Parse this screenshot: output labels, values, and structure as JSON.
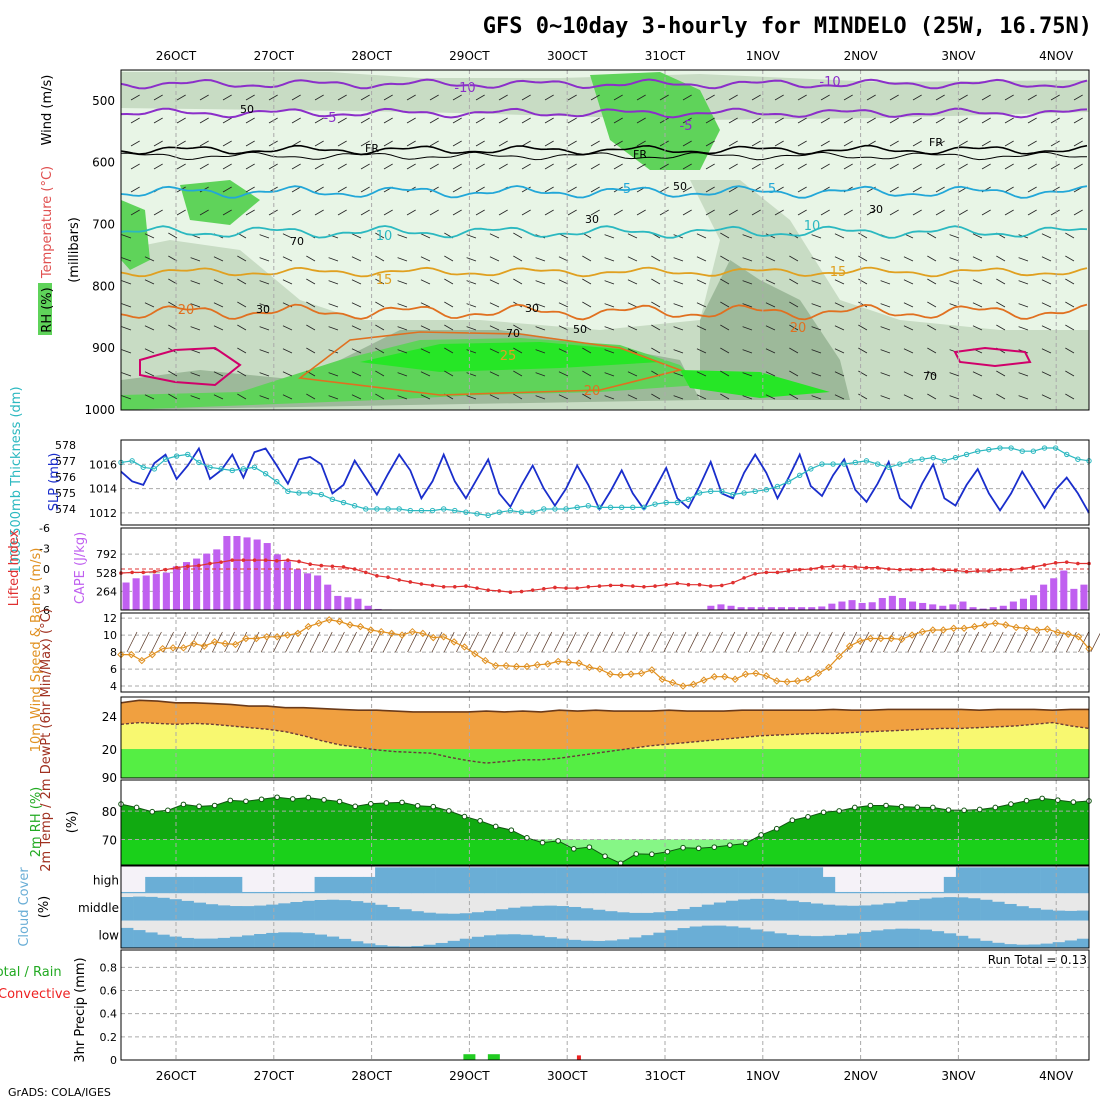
{
  "header": {
    "title": "GFS 0~10day 3-hourly for MINDELO (25W, 16.75N)",
    "footer": "GrADS: COLA/IGES"
  },
  "colors": {
    "rh_light": "#e8f5e6",
    "rh_mid": "#c8dcc4",
    "rh_dark": "#9db99a",
    "rh_green": "#5fd35a",
    "rh_bright": "#26e626",
    "wind_line": "#8b2fc9",
    "freeze_line": "#000000",
    "temp_cyan": "#22a7d8",
    "temp_orange": "#e0a020",
    "temp_dark_orange": "#e07020",
    "magenta": "#d0006a",
    "slp": "#1a2ecc",
    "thickness": "#2bb8c0",
    "cape": "#c060f0",
    "li": "#e03030",
    "wind10": "#e09020",
    "temp_fill": "#f0a040",
    "dew_fill": "#f8f870",
    "green_fill": "#55ee44",
    "rh2m_dark": "#11aa11",
    "rh2m_bright": "#22ee22",
    "cloud_blue": "#6aaed6",
    "cloud_gray": "#e8e8e8",
    "cloud_white": "#f5f2f8",
    "precip_total": "#22cc22",
    "precip_conv": "#ee2222"
  },
  "chart_data": [
    {
      "panel": "upper_air",
      "type": "heatmap",
      "x_dates": [
        "26OCT",
        "27OCT",
        "28OCT",
        "29OCT",
        "30OCT",
        "31OCT",
        "1NOV",
        "2NOV",
        "3NOV",
        "4NOV"
      ],
      "ylabel_parts": [
        "RH (%)",
        "Temperature (°C)",
        "Wind (m/s)"
      ],
      "ylabel_unit": "(millibars)",
      "y_ticks": [
        500,
        600,
        700,
        800,
        900,
        1000
      ],
      "ylim": [
        1000,
        450
      ],
      "contour_labels": {
        "wind": [
          "-10",
          "-5",
          "-10",
          "-5"
        ],
        "freezing": [
          "FR",
          "FR",
          "FR"
        ],
        "temp": [
          "5",
          "5",
          "10",
          "10",
          "15",
          "15",
          "20",
          "20",
          "20",
          "25"
        ],
        "rh": [
          "50",
          "70",
          "30",
          "30",
          "30",
          "70",
          "50",
          "50",
          "30",
          "70"
        ]
      }
    },
    {
      "panel": "thickness_slp",
      "type": "line",
      "ylabel_left": "1000-500mb Thickness (dm)",
      "ylabel_right": "SLP (mb)",
      "left_ticks": [
        "578",
        "577",
        "576",
        "575",
        "574"
      ],
      "right_ticks": [
        "1016",
        "1014",
        "1012"
      ],
      "series": [
        {
          "name": "SLP",
          "axis": "right",
          "values": [
            1015.4,
            1014.6,
            1014.3,
            1016.1,
            1016.8,
            1014.8,
            1015.9,
            1017.3,
            1014.8,
            1015.5,
            1016.8,
            1014.9,
            1017.0,
            1017.3,
            1015.9,
            1014.4,
            1016.4,
            1016.6,
            1016.0,
            1013.6,
            1014.3,
            1016.3,
            1014.9,
            1013.5,
            1015.2,
            1016.8,
            1015.5,
            1013.2,
            1014.6,
            1016.8,
            1014.6,
            1013.2,
            1014.8,
            1016.4,
            1013.6,
            1012.5,
            1014.3,
            1015.9,
            1014.0,
            1012.6,
            1014.0,
            1015.9,
            1014.3,
            1012.3,
            1013.8,
            1015.5,
            1013.6,
            1012.3,
            1014.0,
            1015.7,
            1013.2,
            1012.4,
            1014.2,
            1016.2,
            1013.6,
            1013.2,
            1015.3,
            1016.8,
            1015.3,
            1013.2,
            1014.9,
            1016.8,
            1014.2,
            1013.4,
            1015.1,
            1016.4,
            1013.9,
            1012.9,
            1014.4,
            1016.2,
            1013.2,
            1012.4,
            1014.4,
            1016.0,
            1013.2,
            1012.6,
            1014.3,
            1015.6,
            1013.6,
            1012.2,
            1013.6,
            1015.4,
            1013.9,
            1012.4,
            1013.9,
            1014.9,
            1013.6,
            1012.0
          ]
        },
        {
          "name": "Thickness",
          "axis": "left",
          "values": [
            576.9,
            577.0,
            576.6,
            576.5,
            577.1,
            577.3,
            577.4,
            576.9,
            576.6,
            576.5,
            576.4,
            576.5,
            576.6,
            576.2,
            575.7,
            575.1,
            575.0,
            575.0,
            574.9,
            574.6,
            574.4,
            574.2,
            574.0,
            574.0,
            574.0,
            574.0,
            573.9,
            573.9,
            573.9,
            574.0,
            573.9,
            573.8,
            573.7,
            573.6,
            573.8,
            573.9,
            573.8,
            573.8,
            574.0,
            574.0,
            574.0,
            574.1,
            574.2,
            574.1,
            574.1,
            574.1,
            574.1,
            574.1,
            574.3,
            574.4,
            574.4,
            574.6,
            575.0,
            575.1,
            575.1,
            574.9,
            575.0,
            575.1,
            575.2,
            575.4,
            575.7,
            576.1,
            576.5,
            576.8,
            576.8,
            576.8,
            576.9,
            577.0,
            576.8,
            576.6,
            576.8,
            577.0,
            577.1,
            577.2,
            577.0,
            577.2,
            577.4,
            577.6,
            577.7,
            577.8,
            577.8,
            577.6,
            577.6,
            577.8,
            577.8,
            577.4,
            577.1,
            577.0
          ]
        }
      ]
    },
    {
      "panel": "cape_li",
      "type": "bar",
      "ylabel_left": "Lifted Index",
      "ylabel_right": "CAPE (J/kg)",
      "left_ticks": [
        "-6",
        "-3",
        "0",
        "3",
        "6"
      ],
      "right_ticks": [
        "792",
        "528",
        "264"
      ],
      "series": [
        {
          "name": "CAPE",
          "axis": "right",
          "values": [
            390,
            450,
            490,
            510,
            530,
            620,
            680,
            730,
            800,
            860,
            1050,
            1050,
            1030,
            1000,
            950,
            790,
            690,
            580,
            520,
            490,
            360,
            200,
            180,
            160,
            60,
            15,
            8,
            5,
            5,
            5,
            5,
            5,
            5,
            5,
            5,
            5,
            5,
            5,
            5,
            5,
            5,
            5,
            5,
            5,
            5,
            5,
            5,
            5,
            5,
            5,
            5,
            5,
            5,
            5,
            5,
            5,
            5,
            5,
            60,
            80,
            60,
            40,
            40,
            40,
            40,
            40,
            40,
            40,
            40,
            50,
            90,
            120,
            140,
            100,
            110,
            170,
            200,
            170,
            120,
            100,
            80,
            60,
            80,
            120,
            40,
            20,
            40,
            60,
            120,
            160,
            210,
            360,
            450,
            560,
            300,
            360
          ]
        },
        {
          "name": "Lifted Index",
          "axis": "left",
          "values": [
            0.6,
            0.5,
            0.5,
            0.4,
            0.1,
            -0.2,
            -0.4,
            -0.5,
            -0.8,
            -1.0,
            -1.3,
            -1.3,
            -1.3,
            -1.3,
            -1.2,
            -1.3,
            -1.1,
            -0.7,
            -0.5,
            -0.4,
            -0.3,
            0.0,
            0.5,
            1.0,
            1.2,
            1.6,
            1.9,
            2.2,
            2.4,
            2.6,
            2.6,
            2.5,
            2.8,
            3.1,
            3.2,
            3.4,
            3.3,
            3.1,
            2.9,
            2.7,
            2.8,
            2.8,
            2.6,
            2.5,
            2.4,
            2.4,
            2.5,
            2.6,
            2.5,
            2.3,
            2.1,
            2.3,
            2.3,
            2.5,
            2.4,
            2.0,
            1.3,
            0.7,
            0.5,
            0.5,
            0.3,
            0.1,
            0.0,
            -0.3,
            -0.4,
            -0.4,
            -0.3,
            -0.2,
            -0.2,
            0.0,
            0.1,
            0.1,
            0.1,
            0.0,
            0.2,
            0.2,
            0.4,
            0.3,
            0.3,
            0.1,
            0.1,
            -0.1,
            -0.3,
            -0.6,
            -0.9,
            -1.0,
            -0.8,
            -0.8
          ]
        }
      ]
    },
    {
      "panel": "wind10m",
      "type": "line",
      "ylabel": "10m Wind Speed & Barbs (m/s)",
      "y_ticks": [
        "12",
        "10",
        "8",
        "6",
        "4"
      ],
      "ylim": [
        4,
        12
      ],
      "series": [
        {
          "name": "10m Wind Speed",
          "values": [
            7.7,
            7.7,
            7.0,
            7.7,
            8.4,
            8.5,
            8.5,
            9.0,
            8.7,
            9.2,
            9.0,
            8.9,
            9.6,
            9.6,
            9.8,
            9.8,
            10.0,
            10.2,
            11.0,
            11.4,
            11.8,
            11.6,
            11.2,
            11.0,
            10.6,
            10.4,
            10.2,
            10.0,
            10.4,
            10.2,
            9.7,
            9.8,
            9.2,
            8.6,
            7.8,
            7.0,
            6.4,
            6.4,
            6.3,
            6.3,
            6.5,
            6.6,
            6.9,
            6.8,
            6.7,
            6.2,
            6.0,
            5.4,
            5.3,
            5.4,
            5.5,
            5.9,
            4.8,
            4.4,
            4.0,
            4.2,
            4.7,
            5.1,
            5.1,
            4.8,
            5.4,
            5.5,
            5.2,
            4.6,
            4.5,
            4.6,
            4.8,
            5.5,
            6.2,
            7.5,
            8.7,
            9.3,
            9.6,
            9.6,
            9.6,
            9.5,
            10.0,
            10.4,
            10.6,
            10.6,
            10.8,
            10.8,
            11.0,
            11.2,
            11.4,
            11.2,
            10.9,
            10.8,
            10.6,
            10.7,
            10.3,
            10.1,
            9.8,
            8.4
          ]
        }
      ]
    },
    {
      "panel": "temp2m",
      "type": "area",
      "ylabel": "2m Temp / 2m DewPt (6hr Min/Max) (°C)",
      "y_ticks": [
        "24",
        "20"
      ],
      "series": [
        {
          "name": "2m Temp",
          "values": [
            25.6,
            25.9,
            25.8,
            25.6,
            25.6,
            25.5,
            25.4,
            25.2,
            25.2,
            25.0,
            25.0,
            24.9,
            24.8,
            24.7,
            24.7,
            24.6,
            24.5,
            24.5,
            24.5,
            24.5,
            24.6,
            24.5,
            24.6,
            24.5,
            24.7,
            24.6,
            24.7,
            24.6,
            24.6,
            24.6,
            24.7,
            24.6,
            24.6,
            24.6,
            24.7,
            24.7,
            24.7,
            24.7,
            24.7,
            24.8,
            24.7,
            24.7,
            24.8,
            24.8,
            24.8,
            24.8,
            24.8,
            24.7,
            24.8,
            24.8,
            24.8,
            24.7,
            24.8,
            24.8
          ]
        },
        {
          "name": "2m DewPt",
          "values": [
            23.0,
            23.2,
            23.1,
            23.0,
            23.1,
            23.0,
            22.8,
            22.6,
            22.4,
            22.1,
            21.6,
            21.0,
            20.5,
            20.2,
            19.9,
            19.7,
            19.6,
            19.5,
            19.0,
            18.6,
            18.3,
            18.5,
            18.7,
            18.7,
            18.9,
            19.2,
            19.5,
            19.8,
            20.1,
            20.4,
            20.6,
            20.8,
            21.0,
            21.2,
            21.4,
            21.6,
            21.7,
            21.8,
            21.9,
            21.9,
            22.0,
            22.1,
            22.2,
            22.3,
            22.4,
            22.5,
            22.5,
            22.6,
            22.7,
            22.8,
            23.0,
            23.2,
            22.8,
            22.5
          ]
        }
      ]
    },
    {
      "panel": "rh2m",
      "type": "area",
      "ylabel": "2m RH (%)",
      "y_ticks": [
        "90",
        "80",
        "70"
      ],
      "series": [
        {
          "name": "2m RH",
          "values": [
            82.5,
            81.3,
            79.8,
            80.3,
            82.4,
            81.7,
            82.0,
            83.8,
            83.5,
            84.2,
            84.9,
            84.3,
            84.8,
            84.0,
            83.4,
            81.7,
            82.6,
            82.9,
            83.1,
            81.9,
            81.6,
            80.1,
            78.1,
            76.6,
            74.6,
            73.3,
            70.6,
            68.9,
            69.5,
            66.7,
            67.3,
            64.1,
            61.6,
            64.9,
            64.8,
            65.7,
            67.1,
            66.9,
            67.3,
            68.0,
            68.6,
            71.6,
            73.8,
            76.8,
            78.0,
            79.6,
            80.1,
            81.3,
            82.0,
            82.0,
            81.6,
            81.4,
            81.3,
            80.4,
            80.3,
            80.6,
            81.3,
            82.5,
            83.7,
            84.5,
            83.9,
            83.2,
            83.6
          ]
        }
      ]
    },
    {
      "panel": "cloud_cover",
      "type": "heatmap",
      "ylabel": "Cloud Cover (%)",
      "rows": [
        "high",
        "middle",
        "low"
      ]
    },
    {
      "panel": "precip",
      "type": "bar",
      "ylabel": "3hr Precip (mm)",
      "ylabel_legend_total": "Total / Rain",
      "ylabel_legend_conv": "Convective",
      "y_ticks": [
        "0.8",
        "0.6",
        "0.4",
        "0.2",
        "0"
      ],
      "ylim": [
        0,
        0.95
      ],
      "run_total_label": "Run Total = 0.13",
      "series": [
        {
          "name": "Total",
          "values": [
            {
              "day": 3.0,
              "mm": 0.05
            },
            {
              "day": 3.25,
              "mm": 0.05
            }
          ]
        },
        {
          "name": "Convective",
          "values": [
            {
              "day": 4.12,
              "mm": 0.04
            }
          ]
        }
      ]
    }
  ]
}
